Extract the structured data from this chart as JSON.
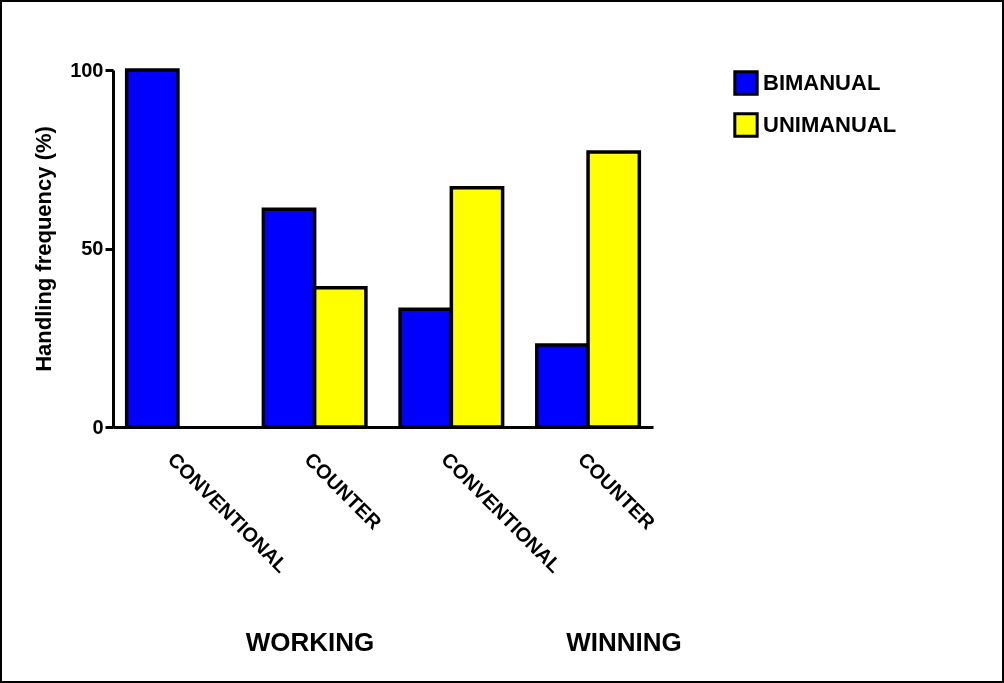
{
  "chart_data": {
    "type": "bar",
    "ylabel": "Handling frequency (%)",
    "categories": [
      "CONVENTIONAL",
      "COUNTER",
      "CONVENTIONAL",
      "COUNTER"
    ],
    "series": [
      {
        "name": "BIMANUAL",
        "color": "#0000ff",
        "values": [
          100,
          61,
          33,
          23
        ]
      },
      {
        "name": "UNIMANUAL",
        "color": "#ffff00",
        "values": [
          null,
          39,
          67,
          77
        ]
      }
    ],
    "ylim": [
      0,
      100
    ],
    "yticks": [
      0,
      50,
      100
    ],
    "grid": false,
    "legend": "top right",
    "annotations": [
      "WORKING",
      "WINNING"
    ]
  }
}
